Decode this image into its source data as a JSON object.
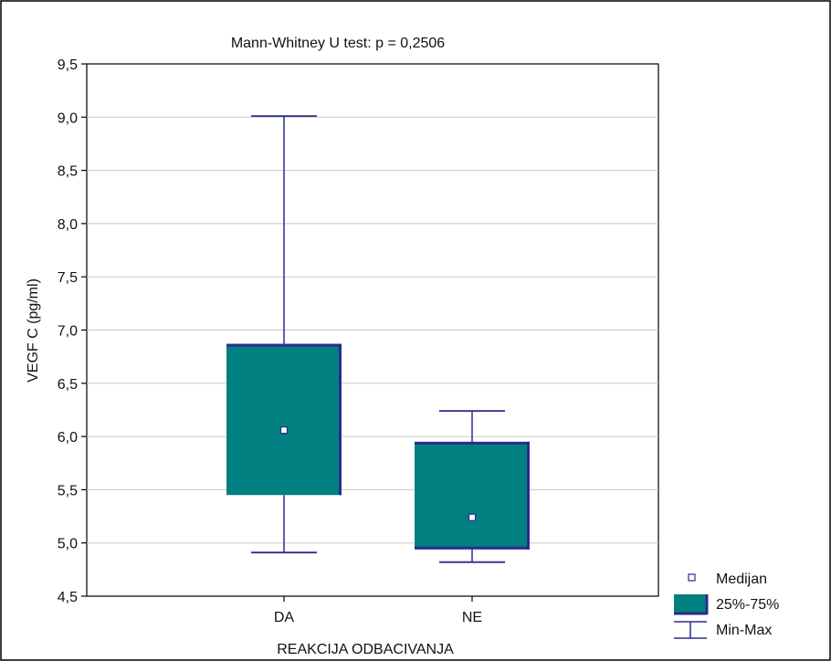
{
  "chart_data": {
    "type": "box",
    "title": "Mann-Whitney U test: p = 0,2506",
    "xlabel": "REAKCIJA ODBACIVANJA",
    "ylabel": "VEGF C (pg/ml)",
    "ylim": [
      4.5,
      9.5
    ],
    "y_ticks": [
      4.5,
      5.0,
      5.5,
      6.0,
      6.5,
      7.0,
      7.5,
      8.0,
      8.5,
      9.0,
      9.5
    ],
    "y_tick_labels": [
      "4,5",
      "5,0",
      "5,5",
      "6,0",
      "6,5",
      "7,0",
      "7,5",
      "8,0",
      "8,5",
      "9,0",
      "9,5"
    ],
    "grid": true,
    "legend_position": "bottom-right",
    "categories": [
      "DA",
      "NE"
    ],
    "boxes": [
      {
        "category": "DA",
        "min": 4.91,
        "q1": 5.45,
        "median": 6.06,
        "q3": 6.87,
        "max": 9.01
      },
      {
        "category": "NE",
        "min": 4.82,
        "q1": 4.94,
        "median": 5.24,
        "q3": 5.95,
        "max": 6.24
      }
    ],
    "legend": [
      {
        "key": "median",
        "label": "Medijan"
      },
      {
        "key": "iqr",
        "label": "25%-75%"
      },
      {
        "key": "range",
        "label": "Min-Max"
      }
    ],
    "colors": {
      "box_fill": "#008080",
      "box_edge": "#2b2b8f",
      "whisker": "#2b2b8f",
      "grid": "#c8c8c8",
      "median_marker_fill": "#ffffff"
    }
  }
}
